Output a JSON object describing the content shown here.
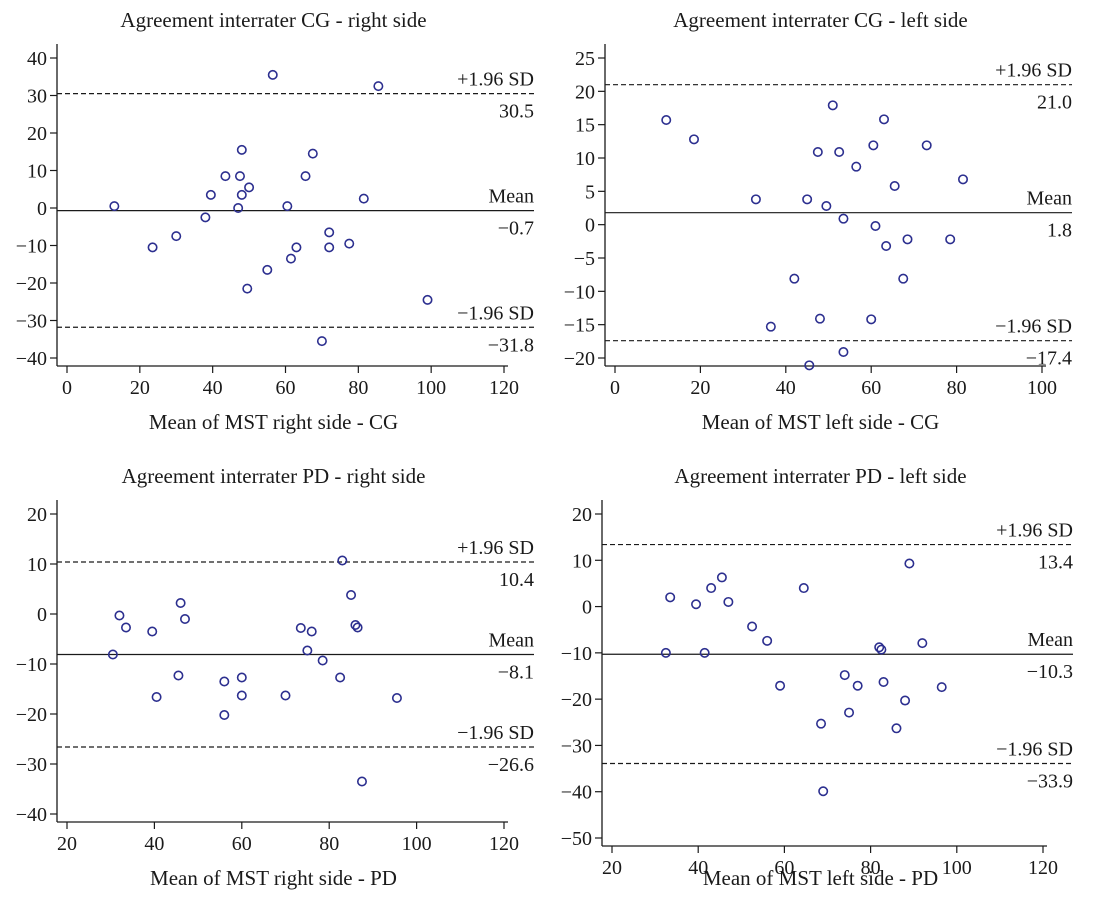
{
  "chart_data": [
    {
      "type": "scatter",
      "title": "Agreement interrater CG - right side",
      "xlabel": "Mean of MST right side - CG",
      "ylabel": "",
      "xlim": [
        0,
        120
      ],
      "ylim": [
        -40,
        40
      ],
      "xticks": [
        0,
        20,
        40,
        60,
        80,
        100,
        120
      ],
      "yticks": [
        -40,
        -30,
        -20,
        -10,
        0,
        10,
        20,
        30,
        40
      ],
      "grid": false,
      "points": [
        {
          "x": 13,
          "y": 0.5
        },
        {
          "x": 23.5,
          "y": -10.5
        },
        {
          "x": 30,
          "y": -7.5
        },
        {
          "x": 38,
          "y": -2.5
        },
        {
          "x": 39.5,
          "y": 3.5
        },
        {
          "x": 43.5,
          "y": 8.5
        },
        {
          "x": 47,
          "y": 0
        },
        {
          "x": 47.5,
          "y": 8.5
        },
        {
          "x": 48,
          "y": 15.5
        },
        {
          "x": 48,
          "y": 3.5
        },
        {
          "x": 49.5,
          "y": -21.5
        },
        {
          "x": 50,
          "y": 5.5
        },
        {
          "x": 55,
          "y": -16.5
        },
        {
          "x": 56.5,
          "y": 35.5
        },
        {
          "x": 60.5,
          "y": 0.5
        },
        {
          "x": 61.5,
          "y": -13.5
        },
        {
          "x": 63,
          "y": -10.5
        },
        {
          "x": 65.5,
          "y": 8.5
        },
        {
          "x": 67.5,
          "y": 14.5
        },
        {
          "x": 70,
          "y": -35.5
        },
        {
          "x": 72,
          "y": -6.5
        },
        {
          "x": 72,
          "y": -10.5
        },
        {
          "x": 77.5,
          "y": -9.5
        },
        {
          "x": 81.5,
          "y": 2.5
        },
        {
          "x": 85.5,
          "y": 32.5
        },
        {
          "x": 99,
          "y": -24.5
        }
      ],
      "reference_lines": [
        {
          "value": 30.5,
          "label": "+1.96 SD",
          "value_text": "30.5",
          "style": "dashed"
        },
        {
          "value": -0.7,
          "label": "Mean",
          "value_text": "−0.7",
          "style": "solid"
        },
        {
          "value": -31.8,
          "label": "−1.96 SD",
          "value_text": "−31.8",
          "style": "dashed"
        }
      ]
    },
    {
      "type": "scatter",
      "title": "Agreement interrater CG - left side",
      "xlabel": "Mean of MST left side - CG",
      "ylabel": "",
      "xlim": [
        0,
        100
      ],
      "ylim": [
        -20,
        25
      ],
      "xticks": [
        0,
        20,
        40,
        60,
        80,
        100
      ],
      "yticks": [
        -20,
        -15,
        -10,
        -5,
        0,
        5,
        10,
        15,
        20,
        25
      ],
      "grid": false,
      "points": [
        {
          "x": 12,
          "y": 15.7
        },
        {
          "x": 18.5,
          "y": 12.8
        },
        {
          "x": 33,
          "y": 3.8
        },
        {
          "x": 36.5,
          "y": -15.3
        },
        {
          "x": 42,
          "y": -8.1
        },
        {
          "x": 45,
          "y": 3.8
        },
        {
          "x": 45.5,
          "y": -21.1
        },
        {
          "x": 47.5,
          "y": 10.9
        },
        {
          "x": 48,
          "y": -14.1
        },
        {
          "x": 49.5,
          "y": 2.8
        },
        {
          "x": 51,
          "y": 17.9
        },
        {
          "x": 52.5,
          "y": 10.9
        },
        {
          "x": 53.5,
          "y": 0.9
        },
        {
          "x": 53.5,
          "y": -19.1
        },
        {
          "x": 56.5,
          "y": 8.7
        },
        {
          "x": 60,
          "y": -14.2
        },
        {
          "x": 60.5,
          "y": 11.9
        },
        {
          "x": 61,
          "y": -0.2
        },
        {
          "x": 63,
          "y": 15.8
        },
        {
          "x": 63.5,
          "y": -3.2
        },
        {
          "x": 65.5,
          "y": 5.8
        },
        {
          "x": 67.5,
          "y": -8.1
        },
        {
          "x": 68.5,
          "y": -2.2
        },
        {
          "x": 73,
          "y": 11.9
        },
        {
          "x": 78.5,
          "y": -2.2
        },
        {
          "x": 81.5,
          "y": 6.8
        }
      ],
      "reference_lines": [
        {
          "value": 21.0,
          "label": "+1.96 SD",
          "value_text": "21.0",
          "style": "dashed"
        },
        {
          "value": 1.8,
          "label": "Mean",
          "value_text": "1.8",
          "style": "solid"
        },
        {
          "value": -17.4,
          "label": "−1.96 SD",
          "value_text": "−17.4",
          "style": "dashed"
        }
      ]
    },
    {
      "type": "scatter",
      "title": "Agreement interrater PD - right side",
      "xlabel": "Mean of MST right side - PD",
      "ylabel": "",
      "xlim": [
        20,
        120
      ],
      "ylim": [
        -40,
        20
      ],
      "xticks": [
        20,
        40,
        60,
        80,
        100,
        120
      ],
      "yticks": [
        -40,
        -30,
        -20,
        -10,
        0,
        10,
        20
      ],
      "grid": false,
      "points": [
        {
          "x": 30.5,
          "y": -8.1
        },
        {
          "x": 32,
          "y": -0.3
        },
        {
          "x": 33.5,
          "y": -2.7
        },
        {
          "x": 39.5,
          "y": -3.5
        },
        {
          "x": 40.5,
          "y": -16.6
        },
        {
          "x": 45.5,
          "y": -12.3
        },
        {
          "x": 46,
          "y": 2.2
        },
        {
          "x": 47,
          "y": -1
        },
        {
          "x": 56,
          "y": -13.5
        },
        {
          "x": 56,
          "y": -20.2
        },
        {
          "x": 60,
          "y": -12.7
        },
        {
          "x": 60,
          "y": -16.3
        },
        {
          "x": 70,
          "y": -16.3
        },
        {
          "x": 73.5,
          "y": -2.8
        },
        {
          "x": 75,
          "y": -7.3
        },
        {
          "x": 76,
          "y": -3.5
        },
        {
          "x": 78.5,
          "y": -9.3
        },
        {
          "x": 82.5,
          "y": -12.7
        },
        {
          "x": 83,
          "y": 10.7
        },
        {
          "x": 85,
          "y": 3.8
        },
        {
          "x": 86,
          "y": -2.2
        },
        {
          "x": 86.5,
          "y": -2.7
        },
        {
          "x": 87.5,
          "y": -33.5
        },
        {
          "x": 95.5,
          "y": -16.8
        }
      ],
      "reference_lines": [
        {
          "value": 10.4,
          "label": "+1.96 SD",
          "value_text": "10.4",
          "style": "dashed"
        },
        {
          "value": -8.1,
          "label": "Mean",
          "value_text": "−8.1",
          "style": "solid"
        },
        {
          "value": -26.6,
          "label": "−1.96 SD",
          "value_text": "−26.6",
          "style": "dashed"
        }
      ]
    },
    {
      "type": "scatter",
      "title": "Agreement interrater PD - left side",
      "xlabel": "Mean of MST left side - PD",
      "ylabel": "",
      "xlim": [
        20,
        120
      ],
      "ylim": [
        -50,
        20
      ],
      "xticks": [
        20,
        40,
        60,
        80,
        100,
        120
      ],
      "yticks": [
        -50,
        -40,
        -30,
        -20,
        -10,
        0,
        10,
        20
      ],
      "grid": false,
      "points": [
        {
          "x": 32.5,
          "y": -10
        },
        {
          "x": 33.5,
          "y": 2
        },
        {
          "x": 39.5,
          "y": 0.5
        },
        {
          "x": 41.5,
          "y": -10
        },
        {
          "x": 43,
          "y": 4
        },
        {
          "x": 45.5,
          "y": 6.3
        },
        {
          "x": 47,
          "y": 1
        },
        {
          "x": 52.5,
          "y": -4.3
        },
        {
          "x": 56,
          "y": -7.4
        },
        {
          "x": 59,
          "y": -17.1
        },
        {
          "x": 64.5,
          "y": 4
        },
        {
          "x": 68.5,
          "y": -25.3
        },
        {
          "x": 69,
          "y": -39.9
        },
        {
          "x": 74,
          "y": -14.8
        },
        {
          "x": 75,
          "y": -22.9
        },
        {
          "x": 77,
          "y": -17.1
        },
        {
          "x": 82,
          "y": -8.8
        },
        {
          "x": 82.5,
          "y": -9.3
        },
        {
          "x": 83,
          "y": -16.3
        },
        {
          "x": 86,
          "y": -26.3
        },
        {
          "x": 88,
          "y": -20.3
        },
        {
          "x": 89,
          "y": 9.3
        },
        {
          "x": 92,
          "y": -7.9
        },
        {
          "x": 96.5,
          "y": -17.4
        }
      ],
      "reference_lines": [
        {
          "value": 13.4,
          "label": "+1.96 SD",
          "value_text": "13.4",
          "style": "dashed"
        },
        {
          "value": -10.3,
          "label": "Mean",
          "value_text": "−10.3",
          "style": "solid"
        },
        {
          "value": -33.9,
          "label": "−1.96 SD",
          "value_text": "−33.9",
          "style": "dashed"
        }
      ]
    }
  ],
  "colors": {
    "marker": "#2c2f8f",
    "axis": "#1a1a1a",
    "line": "#1a1a1a"
  }
}
